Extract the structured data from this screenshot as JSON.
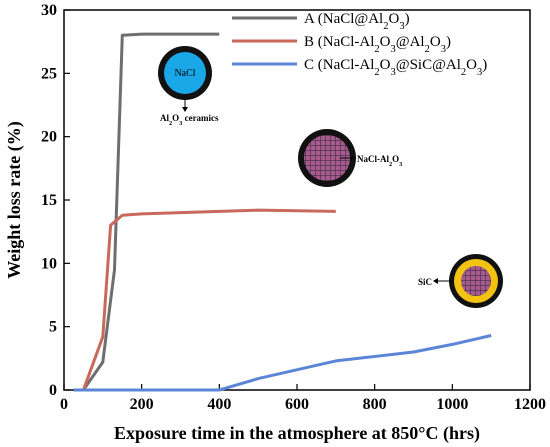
{
  "chart_data": {
    "type": "line",
    "xlabel": "Exposure time in the atmosphere at 850°C (hrs)",
    "ylabel": "Weight loss rate (%)",
    "xlim": [
      0,
      1200
    ],
    "ylim": [
      0,
      30
    ],
    "x_ticks": [
      "0",
      "200",
      "400",
      "600",
      "800",
      "1000",
      "1200"
    ],
    "y_ticks": [
      "0",
      "5",
      "10",
      "15",
      "20",
      "25",
      "30"
    ],
    "legend_position": "top-right",
    "series": [
      {
        "name": "A (NaCl@Al2O3)",
        "legend_parts": [
          [
            "A (NaCl@Al",
            0
          ],
          [
            "2",
            1
          ],
          [
            "O",
            0
          ],
          [
            "3",
            1
          ],
          [
            ")",
            0
          ]
        ],
        "color": "#6e6e6e",
        "x": [
          50,
          100,
          130,
          150,
          200,
          400
        ],
        "y": [
          0,
          2.2,
          9.5,
          28.0,
          28.1,
          28.1
        ]
      },
      {
        "name": "B (NaCl-Al2O3@Al2O3)",
        "legend_parts": [
          [
            "B (NaCl-Al",
            0
          ],
          [
            "2",
            1
          ],
          [
            "O",
            0
          ],
          [
            "3",
            1
          ],
          [
            "@Al",
            0
          ],
          [
            "2",
            1
          ],
          [
            "O",
            0
          ],
          [
            "3",
            1
          ],
          [
            ")",
            0
          ]
        ],
        "color": "#c8695c",
        "x": [
          50,
          100,
          120,
          150,
          200,
          500,
          700
        ],
        "y": [
          0,
          4.2,
          13.0,
          13.8,
          13.9,
          14.2,
          14.1
        ]
      },
      {
        "name": "C (NaCl-Al2O3@SiC@Al2O3)",
        "legend_parts": [
          [
            "C (NaCl-Al",
            0
          ],
          [
            "2",
            1
          ],
          [
            "O",
            0
          ],
          [
            "3",
            1
          ],
          [
            "@SiC@Al",
            0
          ],
          [
            "2",
            1
          ],
          [
            "O",
            0
          ],
          [
            "3",
            1
          ],
          [
            ")",
            0
          ]
        ],
        "color": "#5b85d6",
        "x": [
          25,
          400,
          500,
          700,
          900,
          1000,
          1100
        ],
        "y": [
          0,
          0,
          0.9,
          2.3,
          3.0,
          3.6,
          4.3
        ]
      }
    ],
    "annotations": {
      "core_label": "NaCl",
      "ceramics_label_parts": [
        [
          "Al",
          0
        ],
        [
          "2",
          1
        ],
        [
          "O",
          0
        ],
        [
          "3",
          1
        ],
        [
          " ceramics",
          0
        ]
      ],
      "composite_label_parts": [
        [
          "NaCl-Al",
          0
        ],
        [
          "2",
          1
        ],
        [
          "O",
          0
        ],
        [
          "3",
          1
        ]
      ],
      "sic_label": "SiC"
    }
  },
  "colors": {
    "inset_shell": "#111111",
    "inset_nacl_core": "#1aa7e8",
    "inset_composite_core": "#a85a8c",
    "inset_composite_grid": "#3b2f4a",
    "inset_sic_ring": "#f2c411"
  }
}
